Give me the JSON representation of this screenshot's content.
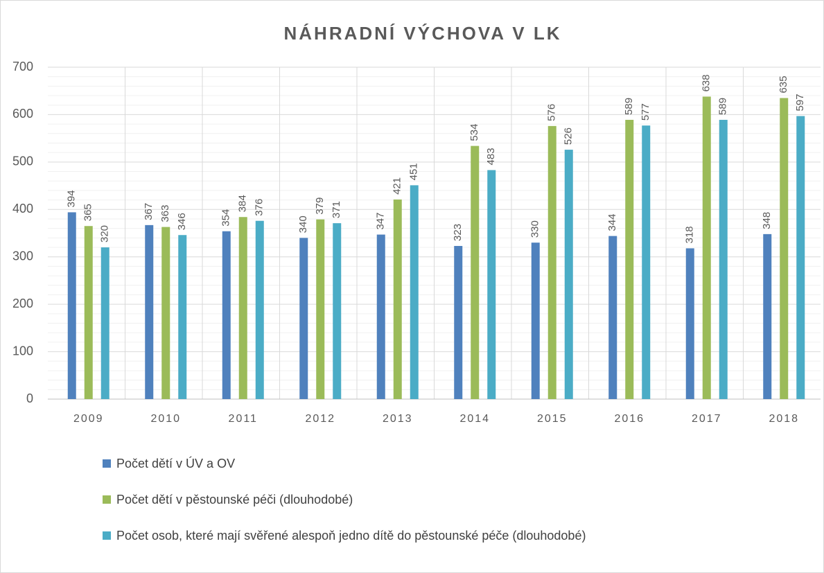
{
  "chart_data": {
    "type": "bar",
    "title": "NÁHRADNÍ VÝCHOVA V LK",
    "categories": [
      "2009",
      "2010",
      "2011",
      "2012",
      "2013",
      "2014",
      "2015",
      "2016",
      "2017",
      "2018"
    ],
    "series": [
      {
        "name": "Počet dětí v ÚV a OV",
        "color": "#4f81bd",
        "values": [
          394,
          367,
          354,
          340,
          347,
          323,
          330,
          344,
          318,
          348
        ]
      },
      {
        "name": "Počet dětí v pěstounské péči (dlouhodobé)",
        "color": "#9bbb59",
        "values": [
          365,
          363,
          384,
          379,
          421,
          534,
          576,
          589,
          638,
          635
        ]
      },
      {
        "name": "Počet osob, které mají svěřené alespoň jedno dítě do pěstounské péče (dlouhodobé)",
        "color": "#4bacc6",
        "values": [
          320,
          346,
          376,
          371,
          451,
          483,
          526,
          577,
          589,
          597
        ]
      }
    ],
    "ylim": [
      0,
      700
    ],
    "yticks": [
      0,
      100,
      200,
      300,
      400,
      500,
      600,
      700
    ],
    "minor_yticks": [
      20,
      40,
      60,
      80,
      120,
      140,
      160,
      180,
      220,
      240,
      260,
      280,
      320,
      340,
      360,
      380,
      420,
      440,
      460,
      480,
      520,
      540,
      560,
      580,
      620,
      640,
      660,
      680
    ],
    "grid": true,
    "legend": "bottom"
  }
}
